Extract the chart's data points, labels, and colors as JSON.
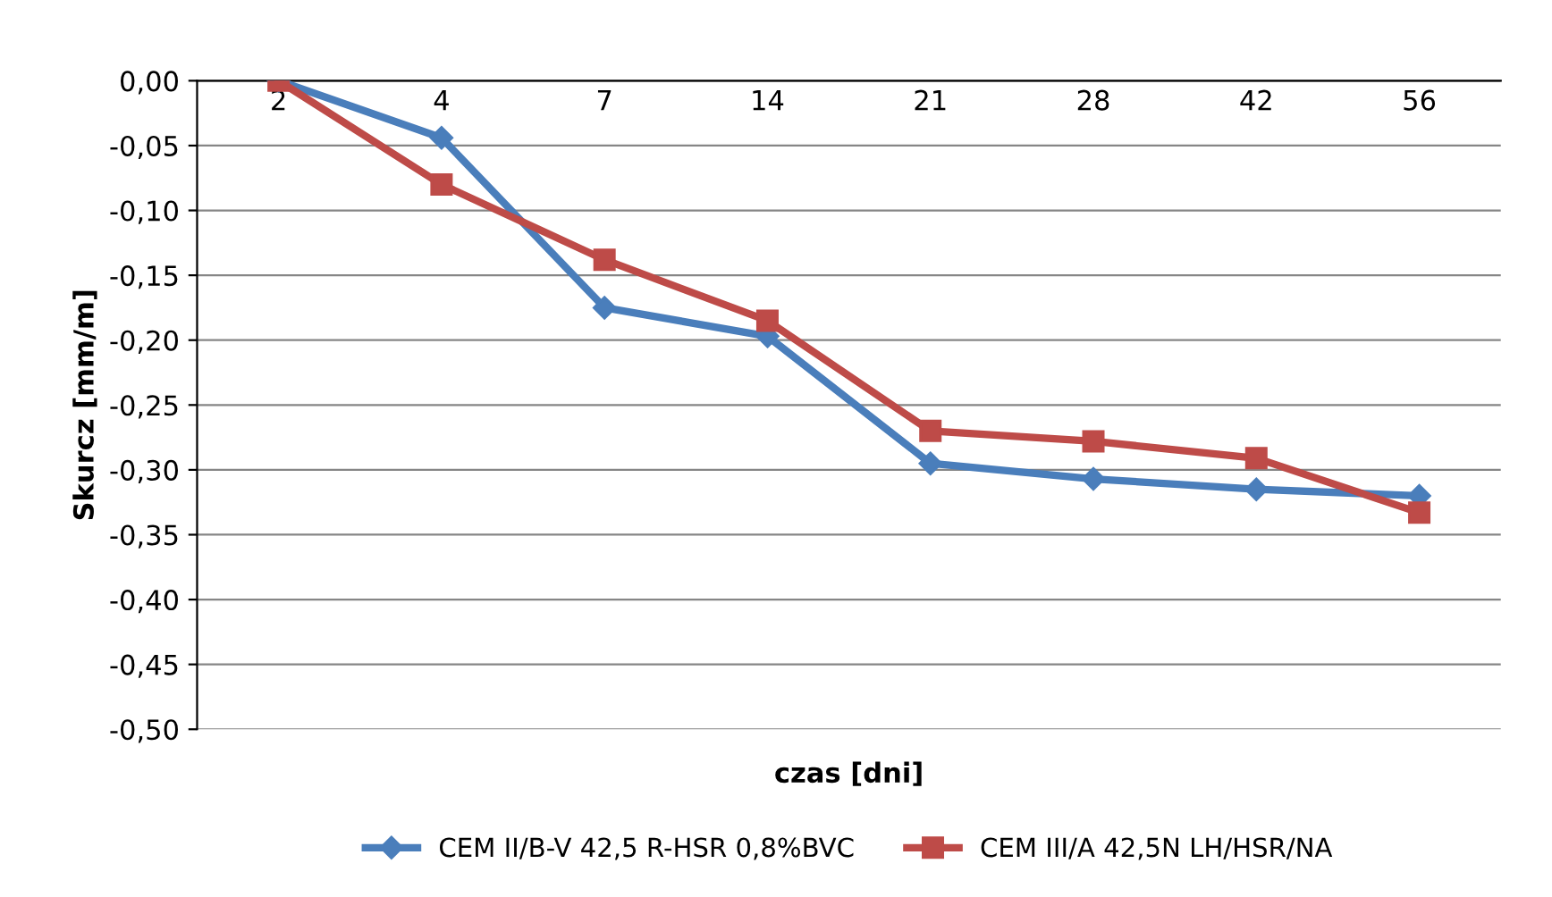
{
  "chart_data": {
    "type": "line",
    "xlabel": "czas [dni]",
    "ylabel": "Skurcz [mm/m]",
    "categories": [
      "2",
      "4",
      "7",
      "14",
      "21",
      "28",
      "42",
      "56"
    ],
    "series": [
      {
        "name": "CEM II/B-V 42,5 R-HSR 0,8%BVC",
        "color": "#4a7ebb",
        "marker": "diamond",
        "values": [
          0,
          -0.044,
          -0.175,
          -0.197,
          -0.295,
          -0.307,
          -0.315,
          -0.32
        ]
      },
      {
        "name": "CEM III/A 42,5N LH/HSR/NA",
        "color": "#be4b48",
        "marker": "square",
        "values": [
          0,
          -0.08,
          -0.138,
          -0.185,
          -0.27,
          -0.278,
          -0.291,
          -0.333
        ]
      }
    ],
    "ylim": [
      -0.5,
      0
    ],
    "yticks": [
      {
        "value": -0.5,
        "label": "-0,50"
      },
      {
        "value": -0.45,
        "label": "-0,45"
      },
      {
        "value": -0.4,
        "label": "-0,40"
      },
      {
        "value": -0.35,
        "label": "-0,35"
      },
      {
        "value": -0.3,
        "label": "-0,30"
      },
      {
        "value": -0.25,
        "label": "-0,25"
      },
      {
        "value": -0.2,
        "label": "-0,20"
      },
      {
        "value": -0.15,
        "label": "-0,15"
      },
      {
        "value": -0.1,
        "label": "-0,10"
      },
      {
        "value": -0.05,
        "label": "-0,05"
      },
      {
        "value": 0,
        "label": "0,00"
      }
    ],
    "grid": "y",
    "legend": "bottom",
    "line_style": "solid"
  }
}
